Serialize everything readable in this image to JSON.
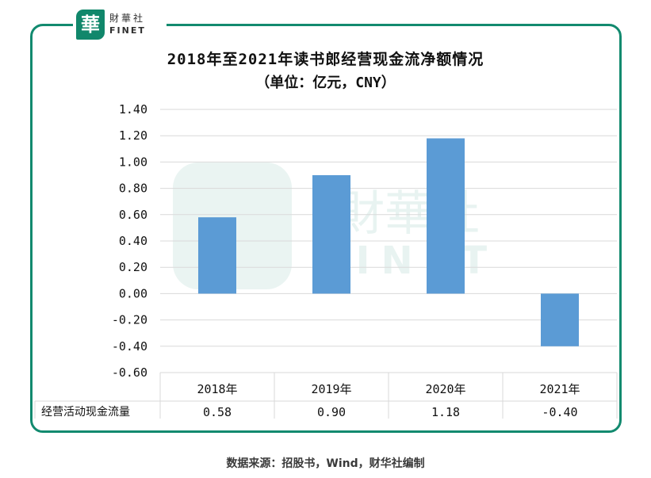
{
  "brand": {
    "mark": "華",
    "name_cn": "財華社",
    "name_en": "FINET",
    "color": "#128a6f"
  },
  "chart_data": {
    "type": "bar",
    "title": "2018年至2021年读书郎经营现金流净额情况",
    "subtitle": "（单位：亿元，CNY）",
    "categories": [
      "2018年",
      "2019年",
      "2020年",
      "2021年"
    ],
    "series": [
      {
        "name": "经营活动现金流量",
        "values": [
          0.58,
          0.9,
          1.18,
          -0.4
        ],
        "value_labels": [
          "0.58",
          "0.90",
          "1.18",
          "-0.40"
        ]
      }
    ],
    "y_ticks": [
      "1.40",
      "1.20",
      "1.00",
      "0.80",
      "0.60",
      "0.40",
      "0.20",
      "0.00",
      "-0.20",
      "-0.40",
      "-0.60"
    ],
    "ylim": [
      -0.6,
      1.4
    ],
    "grid": true,
    "legend": "data-table-below",
    "bar_color": "#5b9bd5"
  },
  "source": "数据来源：招股书，Wind，财华社编制"
}
